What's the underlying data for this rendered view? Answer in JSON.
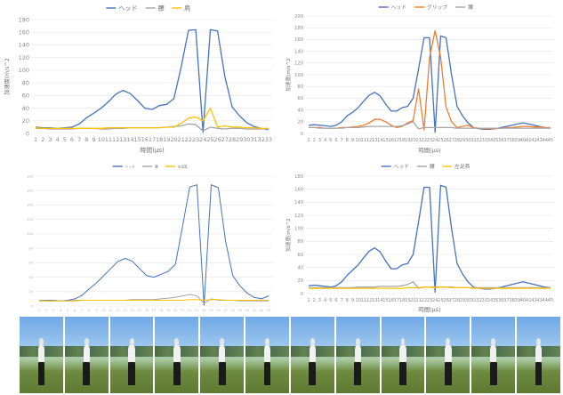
{
  "chart_data": [
    {
      "type": "line",
      "title": "",
      "xlabel": "時間(μs)",
      "ylabel": "加速度(m/s^2",
      "ylim": [
        0,
        180
      ],
      "yticks": [
        0,
        20,
        40,
        60,
        80,
        100,
        120,
        140,
        160,
        180
      ],
      "x": [
        1,
        2,
        3,
        4,
        5,
        6,
        7,
        8,
        9,
        10,
        11,
        12,
        13,
        14,
        15,
        16,
        17,
        18,
        19,
        20,
        21,
        22,
        23,
        24,
        25,
        26,
        27,
        28,
        29,
        30,
        31,
        32,
        33
      ],
      "legend_position": "top-center",
      "grid": true,
      "series": [
        {
          "name": "ヘッド",
          "color": "#4472c4",
          "values": [
            10,
            9,
            9,
            8,
            9,
            10,
            15,
            25,
            32,
            40,
            50,
            62,
            68,
            63,
            52,
            40,
            38,
            44,
            46,
            55,
            105,
            163,
            164,
            2,
            164,
            162,
            90,
            42,
            28,
            17,
            11,
            8,
            6
          ]
        },
        {
          "name": "腰",
          "color": "#a5a5a5",
          "values": [
            8,
            8,
            7,
            7,
            7,
            7,
            8,
            8,
            8,
            7,
            7,
            8,
            8,
            9,
            9,
            9,
            9,
            9,
            10,
            11,
            12,
            15,
            14,
            4,
            10,
            8,
            7,
            8,
            8,
            7,
            7,
            7,
            7
          ]
        },
        {
          "name": "肩",
          "color": "#ffc000",
          "values": [
            9,
            8,
            8,
            8,
            8,
            8,
            8,
            8,
            8,
            8,
            9,
            9,
            9,
            9,
            9,
            9,
            9,
            9,
            10,
            10,
            16,
            24,
            26,
            20,
            40,
            10,
            12,
            10,
            10,
            9,
            9,
            8,
            8
          ]
        }
      ]
    },
    {
      "type": "line",
      "title": "",
      "xlabel": "時間(μs)",
      "ylabel": "加速度(m/s^2",
      "ylim": [
        0,
        200
      ],
      "yticks": [
        0,
        20,
        40,
        60,
        80,
        100,
        120,
        140,
        160,
        180,
        200
      ],
      "x": [
        1,
        2,
        3,
        4,
        5,
        6,
        7,
        8,
        9,
        10,
        11,
        12,
        13,
        14,
        15,
        16,
        17,
        18,
        19,
        20,
        21,
        22,
        23,
        24,
        25,
        26,
        27,
        28,
        29,
        30,
        31,
        32,
        33,
        34,
        35,
        36,
        37,
        38,
        39,
        40,
        41,
        42,
        43,
        44,
        45
      ],
      "legend_position": "top-center",
      "grid": true,
      "series": [
        {
          "name": "ヘッド",
          "color": "#4472c4",
          "values": [
            14,
            15,
            14,
            13,
            12,
            14,
            20,
            30,
            36,
            44,
            55,
            65,
            70,
            64,
            50,
            38,
            38,
            44,
            46,
            60,
            110,
            163,
            163,
            2,
            166,
            163,
            100,
            46,
            30,
            18,
            10,
            8,
            7,
            7,
            8,
            10,
            12,
            14,
            16,
            18,
            16,
            14,
            12,
            10,
            9
          ]
        },
        {
          "name": "グリップ",
          "color": "#ed7d31",
          "values": [
            10,
            10,
            10,
            9,
            9,
            9,
            10,
            10,
            11,
            12,
            14,
            18,
            24,
            24,
            20,
            14,
            10,
            12,
            18,
            22,
            76,
            6,
            130,
            175,
            130,
            45,
            20,
            10,
            12,
            14,
            10,
            9,
            8,
            8,
            8,
            9,
            10,
            10,
            11,
            12,
            12,
            11,
            11,
            10,
            10
          ]
        },
        {
          "name": "腰",
          "color": "#a5a5a5",
          "values": [
            10,
            10,
            9,
            9,
            9,
            9,
            9,
            10,
            10,
            10,
            11,
            12,
            12,
            12,
            12,
            12,
            12,
            13,
            16,
            20,
            8,
            10,
            10,
            10,
            10,
            10,
            10,
            9,
            9,
            9,
            9,
            9,
            9,
            9,
            9,
            9,
            9,
            9,
            9,
            9,
            9,
            9,
            9,
            9,
            9
          ]
        }
      ]
    },
    {
      "type": "line",
      "title": "",
      "xlabel": "",
      "ylabel": "",
      "ylim": [
        0,
        180
      ],
      "x": [
        1,
        2,
        3,
        4,
        5,
        6,
        7,
        8,
        9,
        10,
        11,
        12,
        13,
        14,
        15,
        16,
        17,
        18,
        19,
        20,
        21,
        22,
        23,
        24,
        25,
        26,
        27,
        28,
        29,
        30,
        31,
        32,
        33
      ],
      "legend_position": "top-center",
      "grid": true,
      "series": [
        {
          "name": "ヘッド",
          "color": "#4472c4",
          "values": [
            8,
            8,
            8,
            7,
            8,
            10,
            15,
            24,
            32,
            42,
            52,
            62,
            66,
            62,
            52,
            42,
            40,
            44,
            48,
            58,
            110,
            165,
            168,
            1,
            168,
            164,
            90,
            42,
            28,
            18,
            12,
            10,
            14
          ]
        },
        {
          "name": "腰",
          "color": "#a5a5a5",
          "values": [
            8,
            7,
            7,
            7,
            7,
            8,
            8,
            8,
            8,
            8,
            8,
            8,
            8,
            9,
            9,
            9,
            9,
            10,
            11,
            12,
            14,
            16,
            14,
            4,
            10,
            8,
            8,
            8,
            7,
            7,
            7,
            7,
            7
          ]
        },
        {
          "name": "左足首",
          "color": "#ffc000",
          "values": [
            7,
            7,
            7,
            7,
            7,
            7,
            8,
            8,
            8,
            8,
            8,
            8,
            8,
            8,
            8,
            8,
            8,
            8,
            8,
            8,
            8,
            9,
            9,
            8,
            9,
            9,
            8,
            8,
            8,
            8,
            8,
            8,
            8
          ]
        }
      ]
    },
    {
      "type": "line",
      "title": "",
      "xlabel": "時間(μs)",
      "ylabel": "加速度(m/s^2",
      "ylim": [
        0,
        180
      ],
      "yticks": [
        0,
        20,
        40,
        60,
        80,
        100,
        120,
        140,
        160,
        180
      ],
      "x": [
        1,
        2,
        3,
        4,
        5,
        6,
        7,
        8,
        9,
        10,
        11,
        12,
        13,
        14,
        15,
        16,
        17,
        18,
        19,
        20,
        21,
        22,
        23,
        24,
        25,
        26,
        27,
        28,
        29,
        30,
        31,
        32,
        33,
        34,
        35,
        36,
        37,
        38,
        39,
        40,
        41,
        42,
        43,
        44,
        45
      ],
      "legend_position": "top-center",
      "grid": true,
      "series": [
        {
          "name": "ヘッド",
          "color": "#4472c4",
          "values": [
            12,
            13,
            12,
            11,
            10,
            12,
            18,
            28,
            36,
            44,
            55,
            65,
            70,
            64,
            50,
            38,
            38,
            44,
            46,
            60,
            110,
            163,
            163,
            2,
            166,
            163,
            100,
            46,
            30,
            18,
            10,
            8,
            7,
            7,
            8,
            10,
            12,
            14,
            16,
            18,
            16,
            14,
            12,
            10,
            9
          ]
        },
        {
          "name": "腰",
          "color": "#a5a5a5",
          "values": [
            9,
            9,
            9,
            9,
            9,
            9,
            9,
            9,
            9,
            10,
            10,
            10,
            10,
            11,
            11,
            11,
            11,
            12,
            14,
            18,
            8,
            10,
            10,
            10,
            10,
            10,
            10,
            9,
            9,
            9,
            9,
            9,
            9,
            9,
            9,
            9,
            9,
            9,
            9,
            9,
            9,
            9,
            9,
            9,
            9
          ]
        },
        {
          "name": "左足首",
          "color": "#ffc000",
          "values": [
            8,
            8,
            8,
            8,
            8,
            8,
            8,
            8,
            8,
            8,
            8,
            8,
            8,
            8,
            8,
            8,
            8,
            8,
            9,
            9,
            9,
            10,
            10,
            9,
            10,
            10,
            9,
            9,
            9,
            9,
            8,
            8,
            8,
            8,
            8,
            8,
            8,
            8,
            8,
            8,
            8,
            8,
            8,
            8,
            8
          ]
        }
      ]
    }
  ],
  "photo_strip": {
    "frames": 12
  }
}
